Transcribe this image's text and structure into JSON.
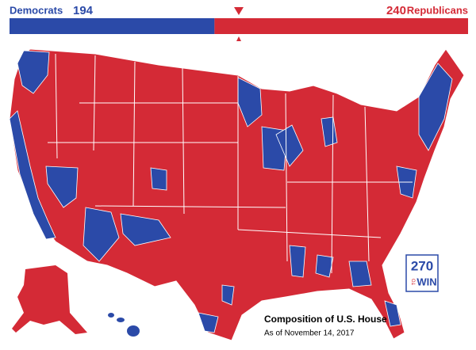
{
  "header": {
    "parties": [
      {
        "name": "Democrats",
        "seats": 194,
        "color": "#2b4aa8"
      },
      {
        "name": "Republicans",
        "seats": 240,
        "color": "#d42a36"
      }
    ]
  },
  "caption": {
    "title": "Composition of U.S. House",
    "subtitle": "As of November 14, 2017"
  },
  "logo": {
    "number": "270",
    "to": "TO",
    "win": "WIN"
  }
}
